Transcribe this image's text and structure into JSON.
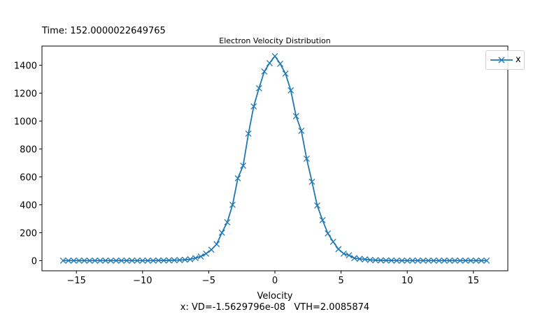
{
  "header": {
    "time_text": "Time: 152.0000022649765"
  },
  "footer": {
    "stats_text": "x: VD=-1.5629796e-08   VTH=2.0085874"
  },
  "colors": {
    "series": "#1f77b4",
    "axis": "#000000",
    "legend_border": "#d0d0d0"
  },
  "chart_data": {
    "type": "line",
    "title": "Electron Velocity Distribution",
    "xlabel": "Velocity",
    "ylabel": "",
    "xlim": [
      -17.6,
      17.6
    ],
    "ylim": [
      -73,
      1537
    ],
    "xticks": [
      -15,
      -10,
      -5,
      0,
      5,
      10,
      15
    ],
    "yticks": [
      0,
      200,
      400,
      600,
      800,
      1000,
      1200,
      1400
    ],
    "grid": false,
    "legend": "top-right",
    "marker": "x",
    "series": [
      {
        "name": "x",
        "x": [
          -16.0,
          -15.6,
          -15.2,
          -14.8,
          -14.4,
          -14.0,
          -13.6,
          -13.2,
          -12.8,
          -12.4,
          -12.0,
          -11.6,
          -11.2,
          -10.8,
          -10.4,
          -10.0,
          -9.6,
          -9.2,
          -8.8,
          -8.4,
          -8.0,
          -7.6,
          -7.2,
          -6.8,
          -6.4,
          -6.0,
          -5.6,
          -5.2,
          -4.8,
          -4.4,
          -4.0,
          -3.6,
          -3.2,
          -2.8,
          -2.4,
          -2.0,
          -1.6,
          -1.2,
          -0.8,
          -0.4,
          0.0,
          0.4,
          0.8,
          1.2,
          1.6,
          2.0,
          2.4,
          2.8,
          3.2,
          3.6,
          4.0,
          4.4,
          4.8,
          5.2,
          5.6,
          6.0,
          6.4,
          6.8,
          7.2,
          7.6,
          8.0,
          8.4,
          8.8,
          9.2,
          9.6,
          10.0,
          10.4,
          10.8,
          11.2,
          11.6,
          12.0,
          12.4,
          12.8,
          13.2,
          13.6,
          14.0,
          14.4,
          14.8,
          15.2,
          15.6,
          16.0
        ],
        "y": [
          0,
          0,
          0,
          0,
          0,
          0,
          0,
          0,
          0,
          0,
          0,
          0,
          0,
          0,
          0,
          0,
          0,
          0,
          1,
          1,
          2,
          3,
          4,
          6,
          10,
          18,
          30,
          50,
          78,
          118,
          200,
          275,
          400,
          590,
          680,
          910,
          1105,
          1235,
          1355,
          1415,
          1465,
          1410,
          1340,
          1220,
          1035,
          930,
          730,
          565,
          395,
          290,
          195,
          135,
          82,
          50,
          38,
          18,
          12,
          9,
          5,
          3,
          2,
          1,
          1,
          0,
          0,
          0,
          0,
          0,
          0,
          0,
          0,
          0,
          0,
          0,
          0,
          0,
          0,
          0,
          0,
          0,
          0
        ]
      }
    ]
  }
}
